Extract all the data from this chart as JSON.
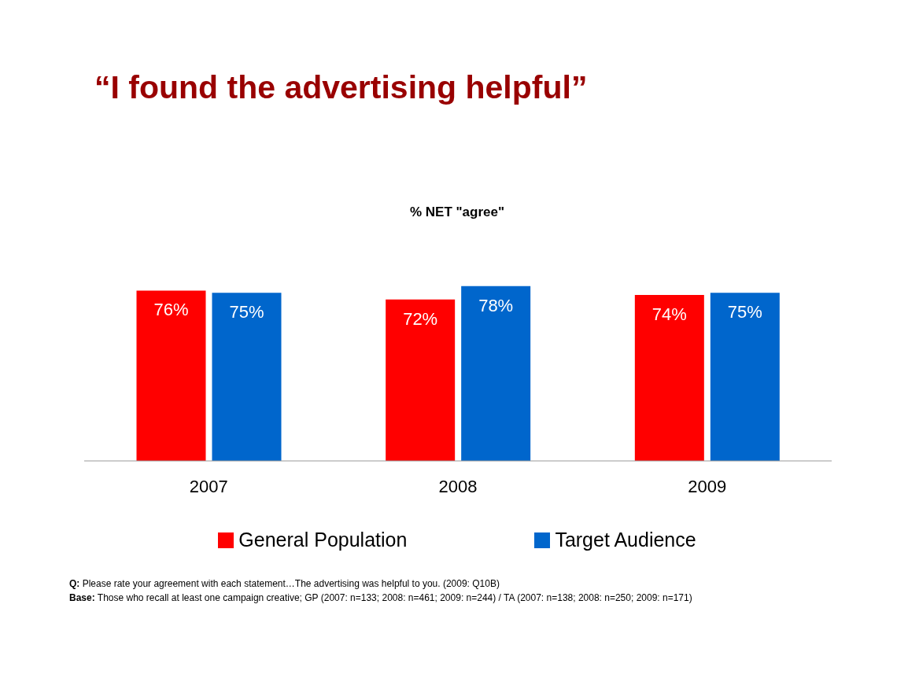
{
  "chart_data": {
    "type": "bar",
    "title": "“I found the advertising helpful”",
    "subtitle": "% NET \"agree\"",
    "categories": [
      "2007",
      "2008",
      "2009"
    ],
    "series": [
      {
        "name": "General Population",
        "color": "#ff0000",
        "values": [
          76,
          72,
          74
        ],
        "value_labels": [
          "76%",
          "72%",
          "74%"
        ]
      },
      {
        "name": "Target Audience",
        "color": "#0066cc",
        "values": [
          75,
          78,
          75
        ],
        "value_labels": [
          "75%",
          "78%",
          "75%"
        ]
      }
    ],
    "legend": "bottom",
    "grid": false,
    "annotations": [
      "Q: Please rate your agreement with each statement…The advertising was helpful to you. (2009: Q10B)",
      "Base: Those who recall at least one campaign creative; GP (2007: n=133; 2008: n=461; 2009: n=244) / TA (2007: n=138; 2008: n=250; 2009: n=171)"
    ]
  }
}
